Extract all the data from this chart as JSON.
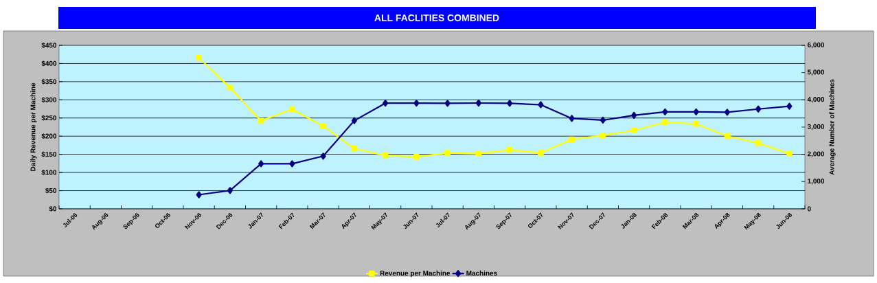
{
  "chart_data": {
    "type": "line",
    "title": "ALL FACLITIES COMBINED",
    "ylabel": "Daily Revenue per Machine",
    "y2label": "Average Number of Machines",
    "categories": [
      "Jul-06",
      "Aug-06",
      "Sep-06",
      "Oct-06",
      "Nov-06",
      "Dec-06",
      "Jan-07",
      "Feb-07",
      "Mar-07",
      "Apr-07",
      "May-07",
      "Jun-07",
      "Jul-07",
      "Aug-07",
      "Sep-07",
      "Oct-07",
      "Nov-07",
      "Dec-07",
      "Jan-08",
      "Feb-08",
      "Mar-08",
      "Apr-08",
      "May-08",
      "Jun-08"
    ],
    "series": [
      {
        "name": "Revenue per Machine",
        "color": "#ffff00",
        "marker": "square",
        "values": [
          null,
          null,
          null,
          null,
          416,
          334,
          242,
          274,
          228,
          166,
          147,
          143,
          154,
          152,
          162,
          154,
          191,
          202,
          216,
          238,
          234,
          200,
          181,
          152
        ]
      },
      {
        "name": "Machines",
        "color": "#000080",
        "marker": "diamond",
        "axis": "y2",
        "values": [
          null,
          null,
          null,
          null,
          517,
          672,
          1655,
          1655,
          1934,
          3237,
          3878,
          3878,
          3872,
          3882,
          3872,
          3820,
          3316,
          3253,
          3431,
          3557,
          3557,
          3547,
          3662,
          3767
        ]
      }
    ],
    "ylim": [
      0,
      450
    ],
    "yticks": [
      {
        "value": 0,
        "label": "$0"
      },
      {
        "value": 50,
        "label": "$50"
      },
      {
        "value": 100,
        "label": "$100"
      },
      {
        "value": 150,
        "label": "$150"
      },
      {
        "value": 200,
        "label": "$200"
      },
      {
        "value": 250,
        "label": "$250"
      },
      {
        "value": 300,
        "label": "$300"
      },
      {
        "value": 350,
        "label": "$350"
      },
      {
        "value": 400,
        "label": "$400"
      },
      {
        "value": 450,
        "label": "$450"
      }
    ],
    "y2lim": [
      0,
      6000
    ],
    "y2ticks": [
      0,
      {
        "value": 1000,
        "label": "1,000"
      },
      {
        "value": 2000,
        "label": "2,000"
      },
      {
        "value": 3000,
        "label": "3,000"
      },
      {
        "value": 4000,
        "label": "4,000"
      },
      {
        "value": 5000,
        "label": "5,000"
      },
      {
        "value": 6000,
        "label": "6,000"
      }
    ],
    "grid": "y",
    "legend": "bottom",
    "line_style": "solid"
  }
}
